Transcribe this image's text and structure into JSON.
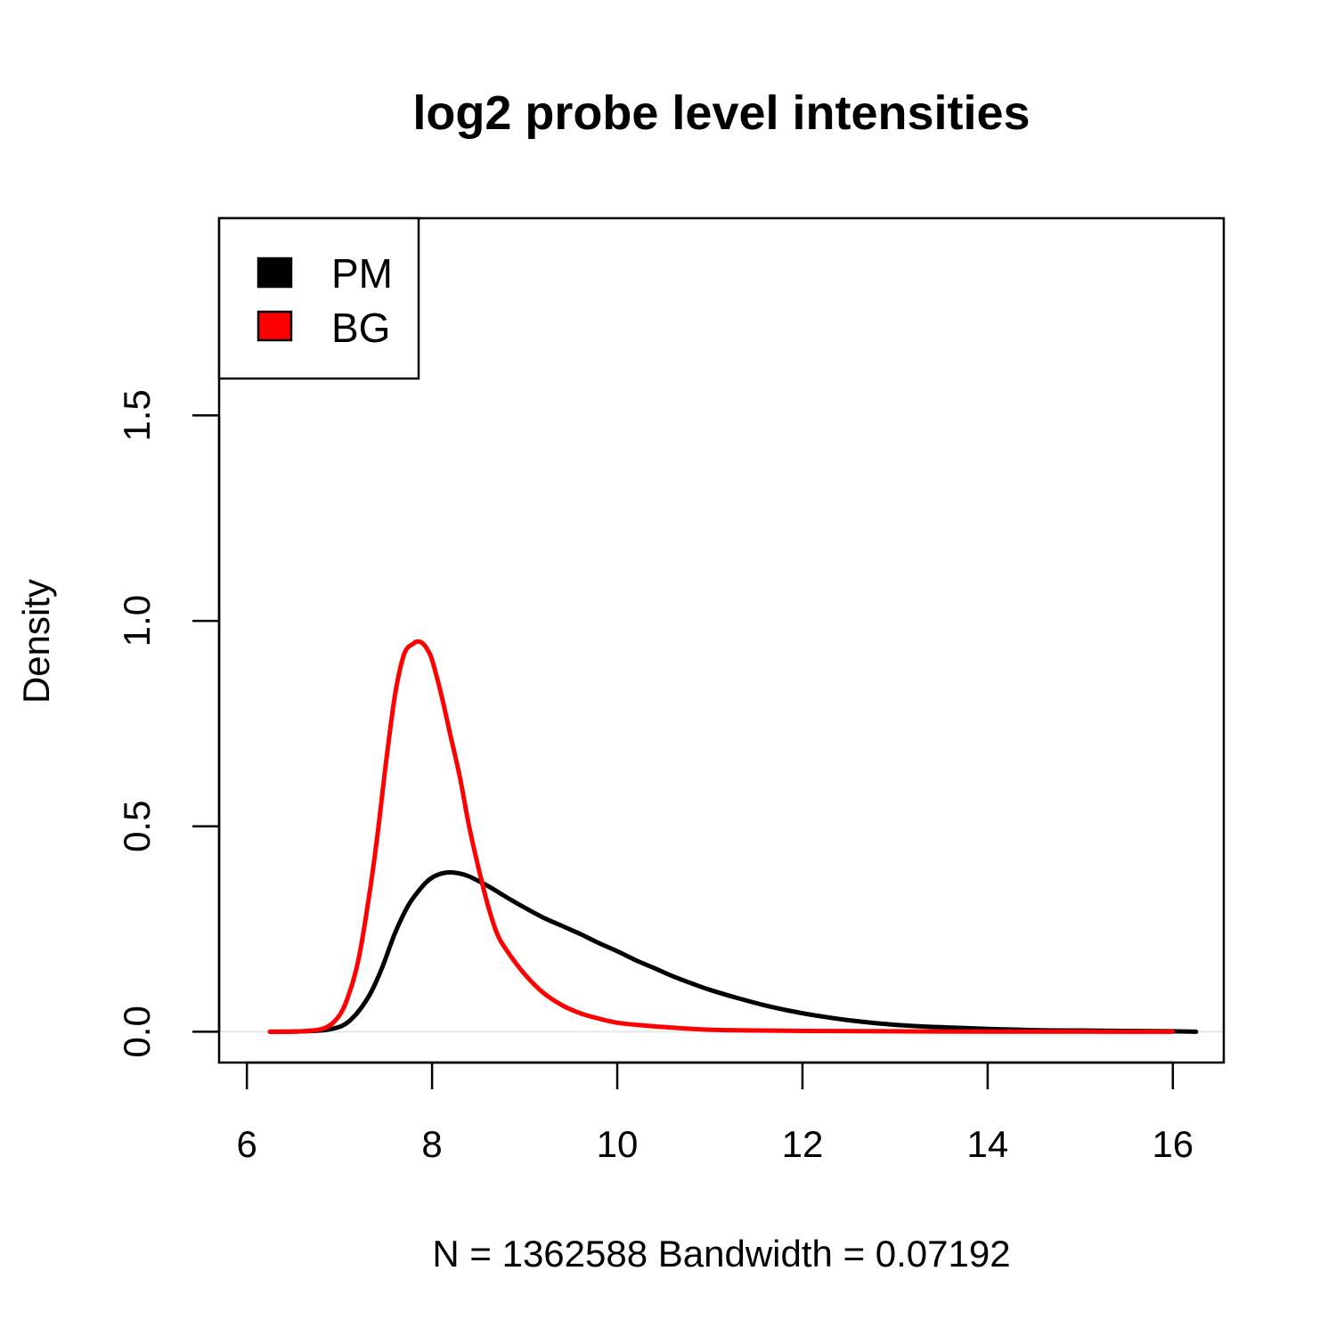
{
  "chart_data": {
    "type": "line",
    "title": "log2 probe level intensities",
    "xlabel": "N = 1362588   Bandwidth = 0.07192",
    "ylabel": "Density",
    "xlim": [
      5.7,
      16.55
    ],
    "ylim": [
      -0.075,
      1.98
    ],
    "x_ticks": [
      6,
      8,
      10,
      12,
      14,
      16
    ],
    "x_tick_labels": [
      "6",
      "8",
      "10",
      "12",
      "14",
      "16"
    ],
    "y_ticks": [
      0.0,
      0.5,
      1.0,
      1.5
    ],
    "y_tick_labels": [
      "0.0",
      "0.5",
      "1.0",
      "1.5"
    ],
    "zero_line": true,
    "grid": false,
    "legend": {
      "position": "top-left"
    },
    "series": [
      {
        "name": "PM",
        "color": "#000000",
        "x": [
          6.25,
          6.6,
          6.9,
          7.1,
          7.3,
          7.45,
          7.6,
          7.75,
          7.9,
          8.0,
          8.1,
          8.2,
          8.3,
          8.4,
          8.6,
          8.8,
          9.0,
          9.2,
          9.4,
          9.6,
          9.8,
          10.0,
          10.2,
          10.4,
          10.6,
          10.8,
          11.0,
          11.3,
          11.6,
          12.0,
          12.5,
          13.0,
          13.5,
          14.0,
          14.5,
          15.0,
          15.5,
          16.0,
          16.25
        ],
        "y": [
          0.0,
          0.001,
          0.006,
          0.025,
          0.08,
          0.15,
          0.24,
          0.31,
          0.355,
          0.375,
          0.385,
          0.388,
          0.385,
          0.378,
          0.355,
          0.328,
          0.302,
          0.278,
          0.258,
          0.238,
          0.216,
          0.196,
          0.174,
          0.155,
          0.135,
          0.118,
          0.102,
          0.082,
          0.064,
          0.045,
          0.028,
          0.017,
          0.011,
          0.007,
          0.004,
          0.003,
          0.002,
          0.001,
          0.0
        ]
      },
      {
        "name": "BG",
        "color": "#ff0000",
        "x": [
          6.25,
          6.6,
          6.85,
          7.0,
          7.1,
          7.2,
          7.3,
          7.4,
          7.5,
          7.6,
          7.7,
          7.8,
          7.85,
          7.9,
          7.95,
          8.0,
          8.1,
          8.2,
          8.3,
          8.4,
          8.5,
          8.6,
          8.7,
          8.8,
          9.0,
          9.2,
          9.4,
          9.6,
          9.8,
          10.0,
          10.3,
          10.6,
          11.0,
          11.5,
          12.0,
          13.0,
          14.0,
          15.0,
          16.0
        ],
        "y": [
          0.0,
          0.001,
          0.01,
          0.04,
          0.09,
          0.17,
          0.3,
          0.46,
          0.65,
          0.82,
          0.92,
          0.945,
          0.95,
          0.945,
          0.93,
          0.905,
          0.82,
          0.72,
          0.62,
          0.5,
          0.4,
          0.31,
          0.24,
          0.2,
          0.14,
          0.095,
          0.065,
          0.045,
          0.032,
          0.022,
          0.015,
          0.01,
          0.005,
          0.003,
          0.002,
          0.001,
          0.0005,
          0.0002,
          0.0
        ]
      }
    ]
  }
}
